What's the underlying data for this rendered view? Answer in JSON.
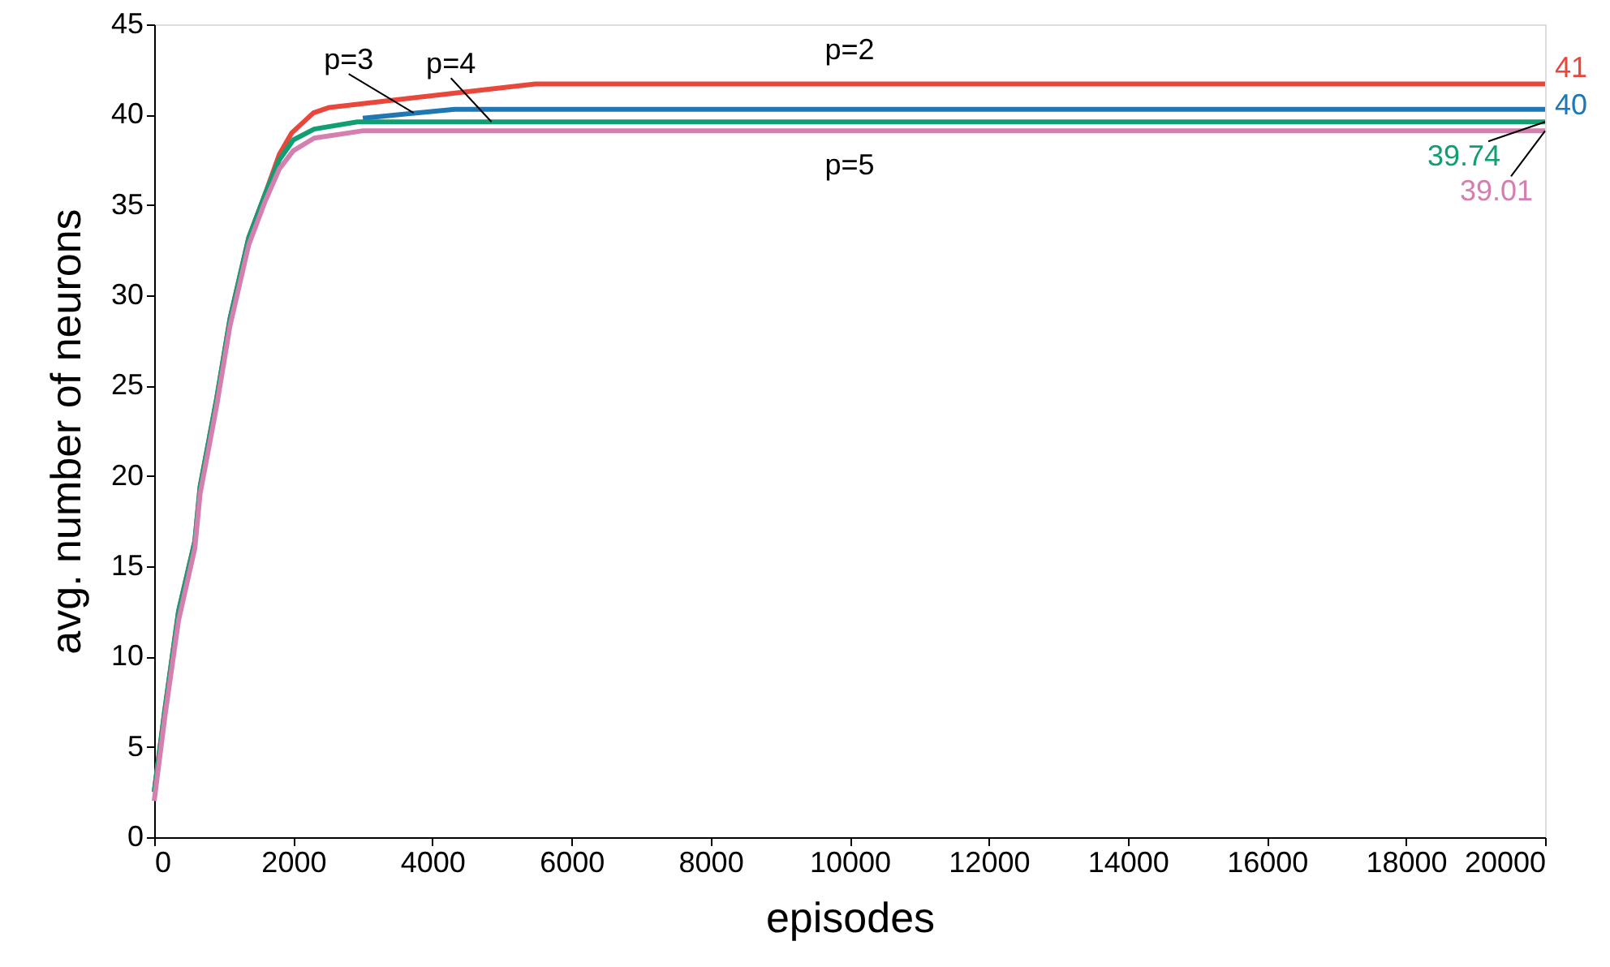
{
  "chart_data": {
    "type": "line",
    "xlabel": "episodes",
    "ylabel": "avg. number of neurons",
    "xlim": [
      0,
      20000
    ],
    "xticks": [
      0,
      2000,
      4000,
      6000,
      8000,
      10000,
      12000,
      14000,
      16000,
      18000,
      20000
    ],
    "ylim": [
      0,
      45
    ],
    "yticks": [
      0,
      5,
      10,
      15,
      20,
      25,
      30,
      35,
      40,
      45
    ],
    "grid": false,
    "line_style": "solid",
    "marker": "none",
    "series": [
      {
        "color": "#e8473c",
        "x": [
          0,
          155,
          350,
          585,
          660,
          895,
          1090,
          1360,
          1595,
          1800,
          1980,
          2290,
          2520,
          5480,
          20000
        ],
        "values": [
          2.5,
          7.1,
          12.5,
          16.4,
          19.4,
          24.2,
          28.7,
          33.2,
          35.6,
          37.8,
          39.0,
          40.1,
          40.4,
          41.7,
          41.7
        ]
      },
      {
        "color": "#1f77b4",
        "x": [
          3000,
          4320,
          20000
        ],
        "values": [
          39.8,
          40.3,
          40.3
        ]
      },
      {
        "color": "#119e73",
        "x": [
          0,
          155,
          350,
          585,
          660,
          895,
          1090,
          1360,
          1595,
          1800,
          2000,
          2300,
          2920,
          20000
        ],
        "values": [
          2.5,
          7.1,
          12.5,
          16.4,
          19.4,
          24.2,
          28.7,
          33.2,
          35.6,
          37.5,
          38.6,
          39.2,
          39.6,
          39.6
        ]
      },
      {
        "color": "#d47fb0",
        "x": [
          0,
          155,
          350,
          585,
          660,
          895,
          1090,
          1360,
          1595,
          1800,
          2000,
          2300,
          2990,
          20000
        ],
        "values": [
          2.0,
          6.7,
          12.0,
          16.0,
          19.0,
          23.8,
          28.3,
          32.8,
          35.2,
          37.0,
          38.0,
          38.7,
          39.1,
          39.1
        ]
      }
    ],
    "annotations": [
      "p=2",
      {
        "text": "p=3",
        "x": 3730,
        "y": 40.1
      },
      {
        "text": "p=4",
        "x": 4850,
        "y": 39.6
      },
      "p=5",
      "41",
      "40",
      {
        "text": "39.74",
        "x": 20000,
        "y": 39.6
      },
      {
        "text": "39.01",
        "x": 20000,
        "y": 39.1
      }
    ]
  }
}
